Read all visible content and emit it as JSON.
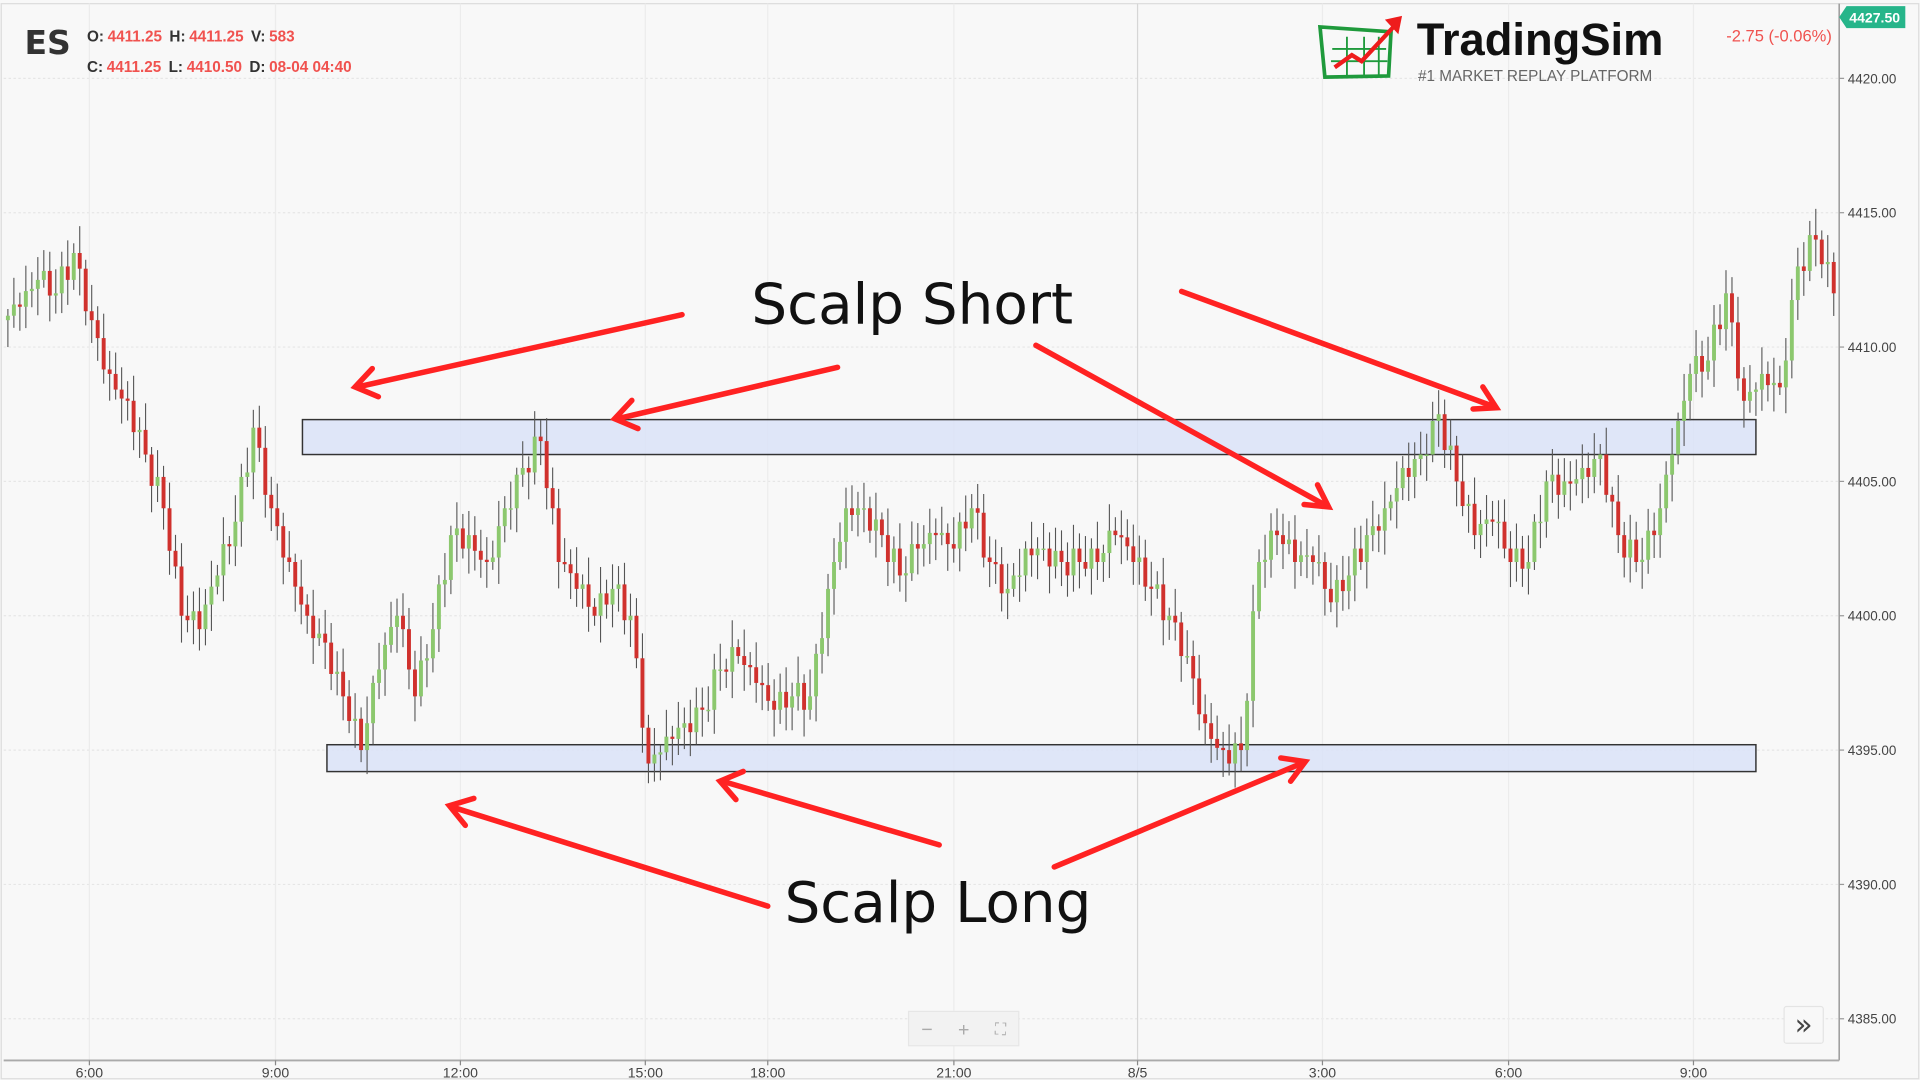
{
  "header": {
    "symbol": "ES",
    "ohlc": [
      {
        "label": "O:",
        "value": "4411.25"
      },
      {
        "label": "H:",
        "value": "4411.25"
      },
      {
        "label": "V:",
        "value": "583"
      },
      {
        "label": "C:",
        "value": "4411.25"
      },
      {
        "label": "L:",
        "value": "4410.50"
      },
      {
        "label": "D:",
        "value": "08-04 04:40"
      }
    ],
    "change": "-2.75 (-0.06%)",
    "last_price_tag": "4427.50"
  },
  "logo": {
    "name": "TradingSim",
    "tagline": "#1 MARKET REPLAY PLATFORM"
  },
  "colors": {
    "up": "#8cc86e",
    "down": "#d0312d",
    "accent_red": "#f0524f",
    "tag": "#26b58a",
    "zone_fill": "#dbe3f8",
    "arrow": "#ff2222"
  },
  "annotations": {
    "short_label": "Scalp Short",
    "long_label": "Scalp Long"
  },
  "zones": [
    {
      "name": "resistance",
      "low": 4406.0,
      "high": 4407.3
    },
    {
      "name": "support",
      "low": 4394.2,
      "high": 4395.2
    }
  ],
  "controls": {
    "zoom_out": "−",
    "zoom_in": "+",
    "fit": "⛶",
    "scroll_right": "»"
  },
  "chart_data": {
    "type": "candlestick",
    "y_ticks": [
      "4420.00",
      "4415.00",
      "4410.00",
      "4405.00",
      "4400.00",
      "4395.00",
      "4390.00",
      "4385.00"
    ],
    "ylim": [
      4385,
      4420
    ],
    "x_ticks": [
      "6:00",
      "9:00",
      "12:00",
      "15:00",
      "18:00",
      "21:00",
      "8/5",
      "3:00",
      "6:00",
      "9:00"
    ],
    "closes": [
      4411,
      4411.5,
      4412.5,
      4412,
      4413.5,
      4411,
      4409,
      4408,
      4406,
      4404,
      4400,
      4399.5,
      4401.5,
      4403.5,
      4407,
      4404,
      4402,
      4400,
      4399,
      4397,
      4395,
      4398,
      4400,
      4397,
      4399.5,
      4403,
      4403,
      4402,
      4404,
      4405.5,
      4406.5,
      4402,
      4401,
      4400,
      4401,
      4400,
      4394.5,
      4395.5,
      4396,
      4396.5,
      4398,
      4398.5,
      4397.5,
      4396.5,
      4397,
      4397,
      4401,
      4404,
      4404,
      4403,
      4401.5,
      4402.5,
      4403,
      4402.5,
      4404,
      4402,
      4401,
      4402.5,
      4402.5,
      4402,
      4402,
      4402,
      4403,
      4402,
      4401,
      4400,
      4398.5,
      4396,
      4395,
      4395,
      4402,
      4403,
      4402,
      4402,
      4400.5,
      4401.5,
      4403,
      4404,
      4405.5,
      4406,
      4407.5,
      4405,
      4403,
      4403.5,
      4402,
      4402,
      4405,
      4405,
      4405.5,
      4406,
      4403,
      4402,
      4403,
      4406,
      4409,
      4409.5,
      4412,
      4408,
      4409,
      4408.5,
      4413,
      4414,
      4412
    ]
  }
}
